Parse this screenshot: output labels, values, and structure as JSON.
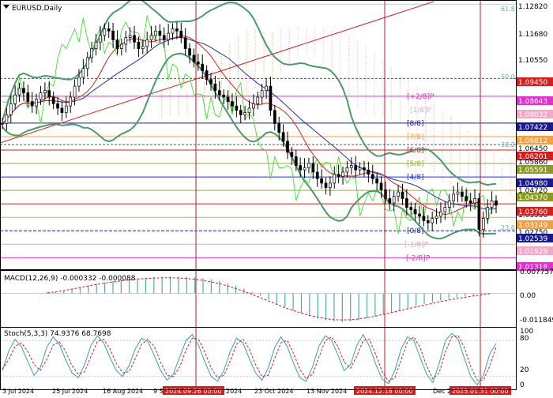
{
  "chart_data": [
    {
      "type": "line",
      "panel": "main",
      "title": "EURUSD,Daily",
      "y_range": [
        1.009,
        1.129
      ],
      "price_labels": [
        {
          "text": "1.12820",
          "style": "plain"
        },
        {
          "text": "1.11680",
          "style": "plain"
        },
        {
          "text": "1.10550",
          "style": "plain"
        },
        {
          "text": "1.09450",
          "style": "red-box"
        },
        {
          "text": "1.08643",
          "style": "magenta-box"
        },
        {
          "text": "1.08032",
          "style": "pink-box"
        },
        {
          "text": "1.07422",
          "style": "navy-box"
        },
        {
          "text": "1.06812",
          "style": "orange-box"
        },
        {
          "text": "1.06450",
          "style": "plain"
        },
        {
          "text": "1.06201",
          "style": "red-box"
        },
        {
          "text": "1.05860",
          "style": "plain"
        },
        {
          "text": "1.05591",
          "style": "olive-box"
        },
        {
          "text": "1.04980",
          "style": "navy-box"
        },
        {
          "text": "1.04720",
          "style": "plain"
        },
        {
          "text": "1.04370",
          "style": "olive-box"
        },
        {
          "text": "1.03550",
          "style": "plain"
        },
        {
          "text": "1.03760",
          "style": "red-box"
        },
        {
          "text": "1.03149",
          "style": "orange-box"
        },
        {
          "text": "1.02750",
          "style": "plain"
        },
        {
          "text": "1.02539",
          "style": "navy-box"
        },
        {
          "text": "1.01929",
          "style": "pink-box"
        },
        {
          "text": "1.01318",
          "style": "magenta-box"
        }
      ],
      "fib_labels": [
        "61.8",
        "50.0",
        "38.2",
        "23.6"
      ],
      "murray_labels": [
        "[+2/8]P",
        "[8/8]",
        "[7/8]",
        "[6/8]",
        "[5/8]",
        "[4/8]",
        "[0/8]",
        "[-1/8]P"
      ],
      "murray_labels_partial": [
        "[1/8]P",
        "[-2/8]P"
      ],
      "x_labels": [
        "3 Jul 2024",
        "25 Jul 2024",
        "16 Aug 2024",
        "9 Sep 2024",
        "2024",
        "23 Oct 2024",
        "13 Nov 2024",
        "Dec 2024"
      ],
      "x_markers": [
        "2024.09.26 00:00",
        "2024.12.18 00:00",
        "2025.01.31 00:00"
      ],
      "close_series": [
        1.074,
        1.078,
        1.083,
        1.087,
        1.09,
        1.088,
        1.084,
        1.082,
        1.085,
        1.088,
        1.089,
        1.086,
        1.083,
        1.081,
        1.079,
        1.082,
        1.086,
        1.091,
        1.095,
        1.099,
        1.104,
        1.108,
        1.111,
        1.114,
        1.117,
        1.116,
        1.112,
        1.108,
        1.11,
        1.113,
        1.114,
        1.111,
        1.108,
        1.109,
        1.112,
        1.114,
        1.116,
        1.114,
        1.112,
        1.115,
        1.117,
        1.116,
        1.113,
        1.108,
        1.105,
        1.102,
        1.101,
        1.098,
        1.094,
        1.092,
        1.089,
        1.087,
        1.086,
        1.084,
        1.082,
        1.08,
        1.078,
        1.079,
        1.081,
        1.083,
        1.086,
        1.089,
        1.091,
        1.08,
        1.074,
        1.07,
        1.066,
        1.061,
        1.059,
        1.055,
        1.053,
        1.054,
        1.056,
        1.052,
        1.049,
        1.047,
        1.045,
        1.047,
        1.051,
        1.05,
        1.052,
        1.054,
        1.055,
        1.053,
        1.054,
        1.053,
        1.051,
        1.049,
        1.047,
        1.044,
        1.04,
        1.038,
        1.041,
        1.043,
        1.04,
        1.036,
        1.035,
        1.033,
        1.032,
        1.03,
        1.029,
        1.031,
        1.032,
        1.034,
        1.036,
        1.039,
        1.042,
        1.043,
        1.041,
        1.039,
        1.038,
        1.04,
        1.026,
        1.031,
        1.036,
        1.039,
        1.037
      ]
    },
    {
      "type": "bar",
      "panel": "macd",
      "title": "MACD(12,26,9) -0.000332 -0.000088",
      "y_range": [
        -0.0125,
        0.0085
      ],
      "tick_labels": [
        "0.007757",
        "0.00",
        "-0.011849"
      ],
      "histogram": [
        0.0004,
        0.0007,
        0.0012,
        0.0018,
        0.0025,
        0.0032,
        0.0038,
        0.0043,
        0.0048,
        0.0052,
        0.0056,
        0.0059,
        0.0062,
        0.0064,
        0.0065,
        0.0066,
        0.0066,
        0.0065,
        0.0063,
        0.006,
        0.0055,
        0.0048,
        0.004,
        0.003,
        0.0018,
        0.0005,
        -0.001,
        -0.0025,
        -0.004,
        -0.0055,
        -0.0068,
        -0.008,
        -0.009,
        -0.0098,
        -0.0105,
        -0.011,
        -0.0112,
        -0.011,
        -0.0105,
        -0.0098,
        -0.009,
        -0.0082,
        -0.0074,
        -0.0066,
        -0.0058,
        -0.005,
        -0.0042,
        -0.0035,
        -0.0028,
        -0.0022,
        -0.0016,
        -0.0011,
        -0.0007,
        -0.0004,
        -0.0003
      ],
      "signal": [
        0.0002,
        0.0006,
        0.0011,
        0.0017,
        0.0023,
        0.0029,
        0.0035,
        0.004,
        0.0045,
        0.0049,
        0.0053,
        0.0056,
        0.0058,
        0.006,
        0.0061,
        0.0061,
        0.006,
        0.0058,
        0.0055,
        0.0051,
        0.0045,
        0.0038,
        0.0029,
        0.0019,
        0.0008,
        -0.0004,
        -0.0017,
        -0.003,
        -0.0043,
        -0.0056,
        -0.0067,
        -0.0077,
        -0.0086,
        -0.0093,
        -0.0099,
        -0.0103,
        -0.0104,
        -0.0103,
        -0.01,
        -0.0095,
        -0.0089,
        -0.0082,
        -0.0075,
        -0.0068,
        -0.006,
        -0.0053,
        -0.0046,
        -0.0039,
        -0.0032,
        -0.0026,
        -0.002,
        -0.0015,
        -0.001,
        -0.0006,
        -0.0001
      ]
    },
    {
      "type": "line",
      "panel": "stoch",
      "title": "Stoch(5,3,3) 74.9376 68.7698",
      "y_range": [
        0,
        100
      ],
      "tick_labels": [
        "100",
        "80",
        "20",
        "0"
      ],
      "series": [
        {
          "values": [
            30,
            62,
            82,
            70,
            45,
            22,
            35,
            68,
            86,
            74,
            48,
            26,
            18,
            40,
            72,
            88,
            76,
            52,
            30,
            20,
            38,
            66,
            84,
            78,
            55,
            30,
            14,
            24,
            52,
            80,
            90,
            72,
            44,
            20,
            12,
            30,
            62,
            84,
            76,
            50,
            26,
            14,
            34,
            68,
            86,
            70,
            42,
            18,
            12,
            36,
            70,
            88,
            80,
            56,
            30,
            40,
            72,
            90,
            70,
            40,
            16,
            8,
            30,
            66,
            86,
            80,
            52,
            24,
            10,
            42,
            80,
            92,
            82,
            50,
            20,
            6,
            22,
            58,
            75
          ]
        },
        {
          "values": [
            32,
            48,
            70,
            76,
            62,
            40,
            30,
            48,
            72,
            78,
            62,
            38,
            24,
            28,
            54,
            78,
            82,
            66,
            42,
            26,
            28,
            50,
            74,
            82,
            70,
            44,
            22,
            20,
            36,
            64,
            84,
            82,
            60,
            34,
            18,
            22,
            46,
            74,
            82,
            66,
            40,
            20,
            22,
            50,
            76,
            80,
            58,
            32,
            16,
            24,
            52,
            80,
            86,
            70,
            44,
            34,
            54,
            80,
            82,
            56,
            28,
            12,
            18,
            48,
            78,
            86,
            68,
            38,
            16,
            26,
            62,
            86,
            88,
            68,
            36,
            14,
            14,
            38,
            69
          ]
        }
      ]
    }
  ]
}
